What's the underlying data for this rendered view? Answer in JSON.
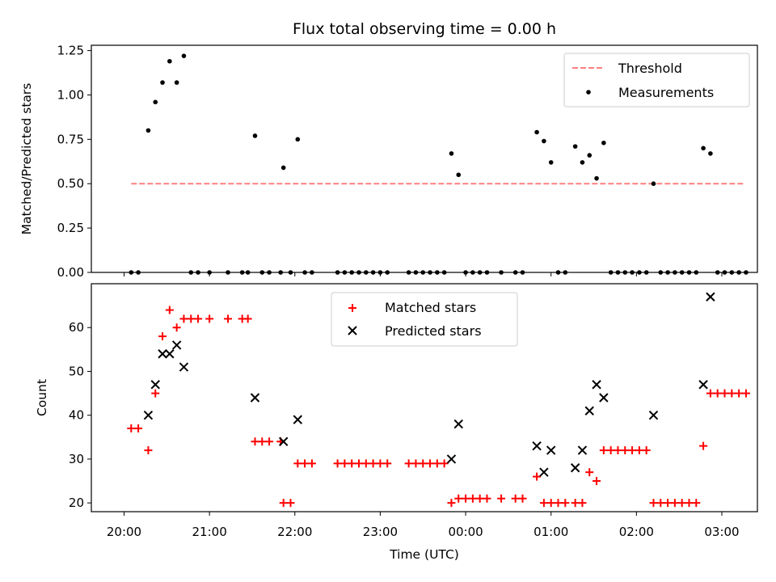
{
  "chart_data": [
    {
      "panel": "top",
      "type": "scatter",
      "title": "Flux total observing time = 0.00 h",
      "ylabel": "Matched/Predicted stars",
      "xlabel": "",
      "ylim": [
        0,
        1.28
      ],
      "yticks": [
        0,
        0.25,
        0.5,
        0.75,
        1.0,
        1.25
      ],
      "ytick_labels": [
        "0.00",
        "0.25",
        "0.50",
        "0.75",
        "1.00",
        "1.25"
      ],
      "legend_position": "top-right",
      "legend": [
        {
          "label": "Threshold",
          "color": "#ff7f7f",
          "style": "dashed-line"
        },
        {
          "label": "Measurements",
          "color": "#000000",
          "style": "dot"
        }
      ],
      "threshold": {
        "name": "Threshold",
        "value": 0.5,
        "x_start": "20:05",
        "x_end": "03:15",
        "color": "#ff7f7f"
      },
      "series": [
        {
          "name": "Measurements",
          "color": "#000000",
          "points": [
            [
              "20:05",
              0
            ],
            [
              "20:10",
              0
            ],
            [
              "20:17",
              0.8
            ],
            [
              "20:22",
              0.96
            ],
            [
              "20:27",
              1.07
            ],
            [
              "20:32",
              1.19
            ],
            [
              "20:37",
              1.07
            ],
            [
              "20:42",
              1.22
            ],
            [
              "20:47",
              0
            ],
            [
              "20:52",
              0
            ],
            [
              "21:00",
              0
            ],
            [
              "21:13",
              0
            ],
            [
              "21:23",
              0
            ],
            [
              "21:27",
              0
            ],
            [
              "21:32",
              0.77
            ],
            [
              "21:37",
              0
            ],
            [
              "21:42",
              0
            ],
            [
              "21:50",
              0
            ],
            [
              "21:52",
              0.59
            ],
            [
              "21:57",
              0
            ],
            [
              "22:02",
              0.75
            ],
            [
              "22:07",
              0
            ],
            [
              "22:12",
              0
            ],
            [
              "22:30",
              0
            ],
            [
              "22:35",
              0
            ],
            [
              "22:40",
              0
            ],
            [
              "22:45",
              0
            ],
            [
              "22:50",
              0
            ],
            [
              "22:55",
              0
            ],
            [
              "23:00",
              0
            ],
            [
              "23:05",
              0
            ],
            [
              "23:20",
              0
            ],
            [
              "23:25",
              0
            ],
            [
              "23:30",
              0
            ],
            [
              "23:35",
              0
            ],
            [
              "23:40",
              0
            ],
            [
              "23:45",
              0
            ],
            [
              "23:50",
              0.67
            ],
            [
              "23:55",
              0.55
            ],
            [
              "00:00",
              0
            ],
            [
              "00:05",
              0
            ],
            [
              "00:10",
              0
            ],
            [
              "00:15",
              0
            ],
            [
              "00:25",
              0
            ],
            [
              "00:35",
              0
            ],
            [
              "00:40",
              0
            ],
            [
              "00:50",
              0.79
            ],
            [
              "00:55",
              0.74
            ],
            [
              "01:00",
              0.62
            ],
            [
              "01:05",
              0
            ],
            [
              "01:10",
              0
            ],
            [
              "01:17",
              0.71
            ],
            [
              "01:22",
              0.62
            ],
            [
              "01:27",
              0.66
            ],
            [
              "01:32",
              0.53
            ],
            [
              "01:37",
              0.73
            ],
            [
              "01:42",
              0
            ],
            [
              "01:47",
              0
            ],
            [
              "01:52",
              0
            ],
            [
              "01:57",
              0
            ],
            [
              "02:02",
              0
            ],
            [
              "02:07",
              0
            ],
            [
              "02:12",
              0.5
            ],
            [
              "02:17",
              0
            ],
            [
              "02:22",
              0
            ],
            [
              "02:27",
              0
            ],
            [
              "02:32",
              0
            ],
            [
              "02:37",
              0
            ],
            [
              "02:42",
              0
            ],
            [
              "02:47",
              0.7
            ],
            [
              "02:52",
              0.67
            ],
            [
              "02:57",
              0
            ],
            [
              "03:02",
              0
            ],
            [
              "03:07",
              0
            ],
            [
              "03:12",
              0
            ],
            [
              "03:17",
              0
            ]
          ]
        }
      ]
    },
    {
      "panel": "bottom",
      "type": "scatter",
      "title": "",
      "ylabel": "Count",
      "xlabel": "Time (UTC)",
      "ylim": [
        18,
        70
      ],
      "yticks": [
        20,
        30,
        40,
        50,
        60
      ],
      "xticks": [
        "20:00",
        "21:00",
        "22:00",
        "23:00",
        "00:00",
        "01:00",
        "02:00",
        "03:00"
      ],
      "legend_position": "top-center",
      "series": [
        {
          "name": "Matched stars",
          "color": "#ff0000",
          "marker": "plus",
          "points": [
            [
              "20:05",
              37
            ],
            [
              "20:10",
              37
            ],
            [
              "20:17",
              32
            ],
            [
              "20:22",
              45
            ],
            [
              "20:27",
              58
            ],
            [
              "20:32",
              64
            ],
            [
              "20:37",
              60
            ],
            [
              "20:42",
              62
            ],
            [
              "20:47",
              62
            ],
            [
              "20:52",
              62
            ],
            [
              "21:00",
              62
            ],
            [
              "21:13",
              62
            ],
            [
              "21:23",
              62
            ],
            [
              "21:27",
              62
            ],
            [
              "21:32",
              34
            ],
            [
              "21:37",
              34
            ],
            [
              "21:42",
              34
            ],
            [
              "21:50",
              34
            ],
            [
              "21:52",
              20
            ],
            [
              "21:57",
              20
            ],
            [
              "22:02",
              29
            ],
            [
              "22:07",
              29
            ],
            [
              "22:12",
              29
            ],
            [
              "22:30",
              29
            ],
            [
              "22:35",
              29
            ],
            [
              "22:40",
              29
            ],
            [
              "22:45",
              29
            ],
            [
              "22:50",
              29
            ],
            [
              "22:55",
              29
            ],
            [
              "23:00",
              29
            ],
            [
              "23:05",
              29
            ],
            [
              "23:20",
              29
            ],
            [
              "23:25",
              29
            ],
            [
              "23:30",
              29
            ],
            [
              "23:35",
              29
            ],
            [
              "23:40",
              29
            ],
            [
              "23:45",
              29
            ],
            [
              "23:50",
              20
            ],
            [
              "23:55",
              21
            ],
            [
              "00:00",
              21
            ],
            [
              "00:05",
              21
            ],
            [
              "00:10",
              21
            ],
            [
              "00:15",
              21
            ],
            [
              "00:25",
              21
            ],
            [
              "00:35",
              21
            ],
            [
              "00:40",
              21
            ],
            [
              "00:50",
              26
            ],
            [
              "00:55",
              20
            ],
            [
              "01:00",
              20
            ],
            [
              "01:05",
              20
            ],
            [
              "01:10",
              20
            ],
            [
              "01:17",
              20
            ],
            [
              "01:22",
              20
            ],
            [
              "01:27",
              27
            ],
            [
              "01:32",
              25
            ],
            [
              "01:37",
              32
            ],
            [
              "01:42",
              32
            ],
            [
              "01:47",
              32
            ],
            [
              "01:52",
              32
            ],
            [
              "01:57",
              32
            ],
            [
              "02:02",
              32
            ],
            [
              "02:07",
              32
            ],
            [
              "02:12",
              20
            ],
            [
              "02:17",
              20
            ],
            [
              "02:22",
              20
            ],
            [
              "02:27",
              20
            ],
            [
              "02:32",
              20
            ],
            [
              "02:37",
              20
            ],
            [
              "02:42",
              20
            ],
            [
              "02:47",
              33
            ],
            [
              "02:52",
              45
            ],
            [
              "02:57",
              45
            ],
            [
              "03:02",
              45
            ],
            [
              "03:07",
              45
            ],
            [
              "03:12",
              45
            ],
            [
              "03:17",
              45
            ]
          ]
        },
        {
          "name": "Predicted stars",
          "color": "#000000",
          "marker": "x",
          "points": [
            [
              "20:17",
              40
            ],
            [
              "20:22",
              47
            ],
            [
              "20:27",
              54
            ],
            [
              "20:32",
              54
            ],
            [
              "20:37",
              56
            ],
            [
              "20:42",
              51
            ],
            [
              "21:32",
              44
            ],
            [
              "21:52",
              34
            ],
            [
              "22:02",
              39
            ],
            [
              "23:50",
              30
            ],
            [
              "23:55",
              38
            ],
            [
              "00:50",
              33
            ],
            [
              "00:55",
              27
            ],
            [
              "01:00",
              32
            ],
            [
              "01:17",
              28
            ],
            [
              "01:22",
              32
            ],
            [
              "01:27",
              41
            ],
            [
              "01:32",
              47
            ],
            [
              "01:37",
              44
            ],
            [
              "02:12",
              40
            ],
            [
              "02:47",
              47
            ],
            [
              "02:52",
              67
            ]
          ]
        }
      ]
    }
  ]
}
